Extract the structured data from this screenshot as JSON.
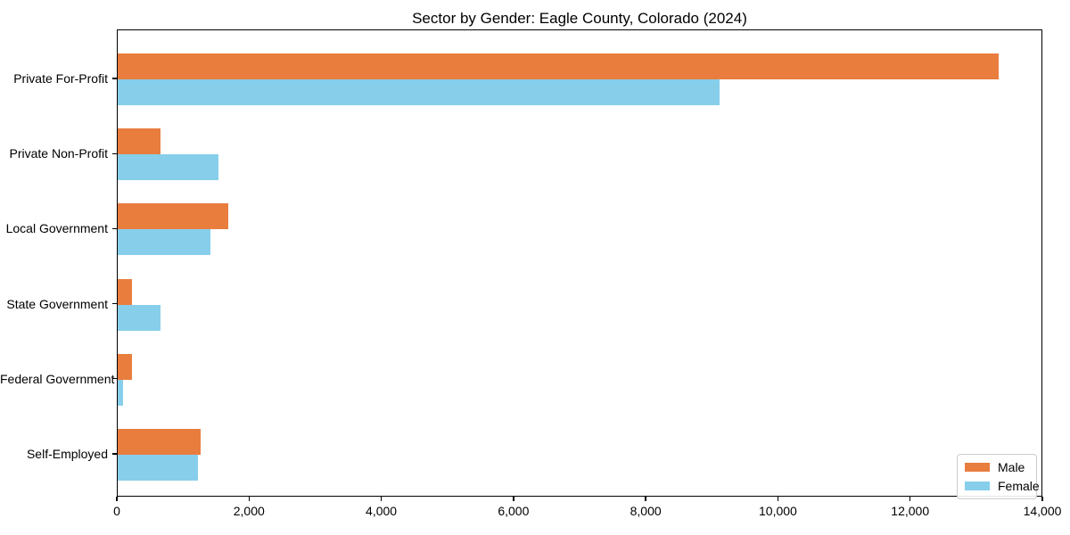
{
  "chart_data": {
    "type": "bar",
    "orientation": "horizontal",
    "title": "Sector by Gender: Eagle County, Colorado (2024)",
    "categories": [
      "Private For-Profit",
      "Private Non-Profit",
      "Local Government",
      "State Government",
      "Federal Government",
      "Self-Employed"
    ],
    "series": [
      {
        "name": "Male",
        "color": "#e87d3e",
        "values": [
          13330,
          650,
          1670,
          220,
          210,
          1250
        ]
      },
      {
        "name": "Female",
        "color": "#87ceeb",
        "values": [
          9110,
          1530,
          1400,
          650,
          80,
          1220
        ]
      }
    ],
    "xlim": [
      0,
      14000
    ],
    "x_ticks": [
      0,
      2000,
      4000,
      6000,
      8000,
      10000,
      12000,
      14000
    ],
    "x_tick_labels": [
      "0",
      "2,000",
      "4,000",
      "6,000",
      "8,000",
      "10,000",
      "12,000",
      "14,000"
    ],
    "ylabel": "",
    "xlabel": "",
    "grid": false,
    "legend_position": "lower right"
  }
}
